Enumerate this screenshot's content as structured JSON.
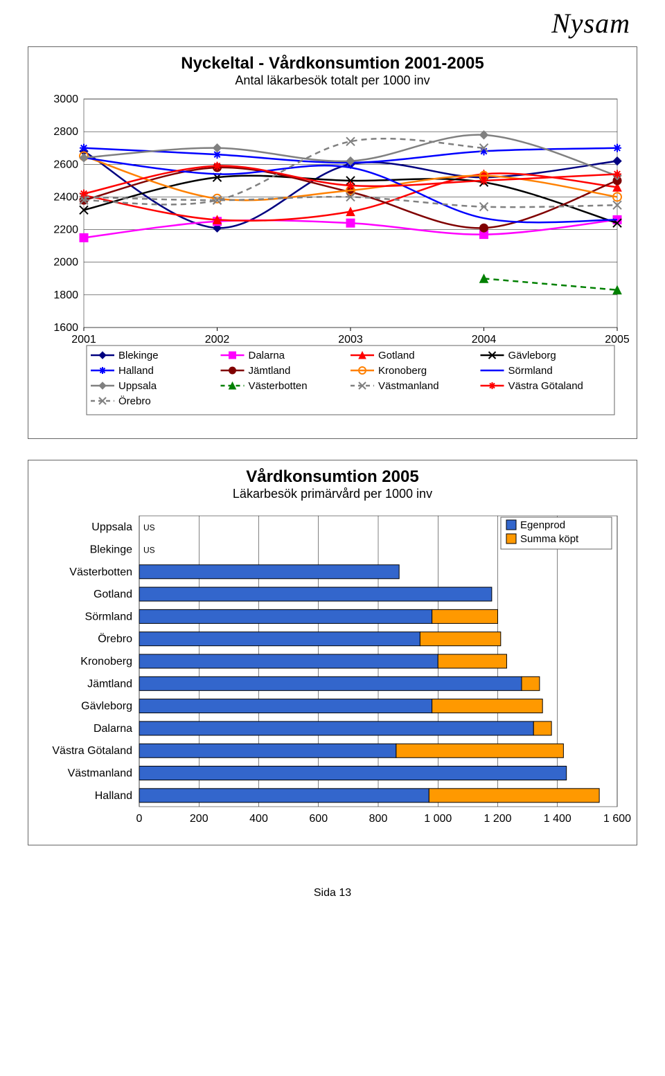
{
  "brand": "Nysam",
  "footer": "Sida  13",
  "linechart": {
    "type": "line",
    "title": "Nyckeltal - Vårdkonsumtion 2001-2005",
    "subtitle": "Antal läkarbesök totalt per 1000 inv",
    "title_fontsize": 24,
    "subtitle_fontsize": 18,
    "background_color": "#ffffff",
    "plot_border_color": "#808080",
    "grid_color": "#000000",
    "tick_font_size": 16,
    "x_categories": [
      "2001",
      "2002",
      "2003",
      "2004",
      "2005"
    ],
    "ylim": [
      1600,
      3000
    ],
    "ytick_step": 200,
    "legend_cols": 4,
    "series": [
      {
        "name": "Blekinge",
        "color": "#000080",
        "marker": "diamond",
        "dash": false,
        "data": [
          2680,
          2210,
          2600,
          2520,
          2620
        ]
      },
      {
        "name": "Dalarna",
        "color": "#ff00ff",
        "marker": "square",
        "dash": false,
        "data": [
          2150,
          2250,
          2240,
          2170,
          2260
        ]
      },
      {
        "name": "Gotland",
        "color": "#ff0000",
        "marker": "triangle",
        "dash": false,
        "data": [
          2410,
          2260,
          2310,
          2540,
          2460
        ]
      },
      {
        "name": "Gävleborg",
        "color": "#000000",
        "marker": "x",
        "dash": false,
        "data": [
          2320,
          2520,
          2500,
          2490,
          2240
        ]
      },
      {
        "name": "Halland",
        "color": "#0000ff",
        "marker": "star",
        "dash": false,
        "data": [
          2700,
          2660,
          2610,
          2680,
          2700
        ]
      },
      {
        "name": "Jämtland",
        "color": "#800000",
        "marker": "circle",
        "dash": false,
        "data": [
          2380,
          2580,
          2430,
          2210,
          2500
        ]
      },
      {
        "name": "Kronoberg",
        "color": "#ff8000",
        "marker": "ocircle",
        "dash": false,
        "data": [
          2650,
          2390,
          2440,
          2530,
          2400
        ]
      },
      {
        "name": "Sörmland",
        "color": "#0000ff",
        "marker": "none",
        "dash": false,
        "data": [
          2640,
          2540,
          2580,
          2270,
          2260
        ]
      },
      {
        "name": "Uppsala",
        "color": "#808080",
        "marker": "diamond",
        "dash": false,
        "data": [
          2640,
          2700,
          2620,
          2780,
          2530
        ]
      },
      {
        "name": "Västerbotten",
        "color": "#008000",
        "marker": "triangle",
        "dash": true,
        "data": [
          null,
          null,
          null,
          1900,
          1830
        ]
      },
      {
        "name": "Västmanland",
        "color": "#808080",
        "marker": "x",
        "dash": true,
        "data": [
          2400,
          2380,
          2400,
          2340,
          2350
        ]
      },
      {
        "name": "Västra Götaland",
        "color": "#ff0000",
        "marker": "star",
        "dash": false,
        "data": [
          2420,
          2590,
          2470,
          2500,
          2540
        ]
      },
      {
        "name": "Örebro",
        "color": "#808080",
        "marker": "x",
        "dash": true,
        "data": [
          2380,
          2380,
          2740,
          2700,
          null
        ]
      }
    ]
  },
  "barchart": {
    "type": "stacked-bar-horizontal",
    "title": "Vårdkonsumtion 2005",
    "subtitle": "Läkarbesök primärvård per 1000 inv",
    "title_fontsize": 24,
    "subtitle_fontsize": 18,
    "background_color": "#ffffff",
    "plot_border_color": "#808080",
    "grid_color": "#000000",
    "xlim": [
      0,
      1600
    ],
    "xtick_step": 200,
    "xtick_labels": [
      "0",
      "200",
      "400",
      "600",
      "800",
      "1 000",
      "1 200",
      "1 400",
      "1 600"
    ],
    "label_font_size": 16,
    "bar_colors": {
      "Egenprod": "#3366cc",
      "Summa köpt": "#ff9900"
    },
    "border_color": "#000000",
    "legend": [
      "Egenprod",
      "Summa köpt"
    ],
    "rows": [
      {
        "label": "Uppsala",
        "egen": null,
        "kopt": null,
        "note": "US"
      },
      {
        "label": "Blekinge",
        "egen": null,
        "kopt": null,
        "note": "US"
      },
      {
        "label": "Västerbotten",
        "egen": 870,
        "kopt": 0
      },
      {
        "label": "Gotland",
        "egen": 1180,
        "kopt": 0
      },
      {
        "label": "Sörmland",
        "egen": 980,
        "kopt": 220
      },
      {
        "label": "Örebro",
        "egen": 940,
        "kopt": 270
      },
      {
        "label": "Kronoberg",
        "egen": 1000,
        "kopt": 230
      },
      {
        "label": "Jämtland",
        "egen": 1280,
        "kopt": 60
      },
      {
        "label": "Gävleborg",
        "egen": 980,
        "kopt": 370
      },
      {
        "label": "Dalarna",
        "egen": 1320,
        "kopt": 60
      },
      {
        "label": "Västra Götaland",
        "egen": 860,
        "kopt": 560
      },
      {
        "label": "Västmanland",
        "egen": 1430,
        "kopt": 0
      },
      {
        "label": "Halland",
        "egen": 970,
        "kopt": 570
      }
    ]
  }
}
